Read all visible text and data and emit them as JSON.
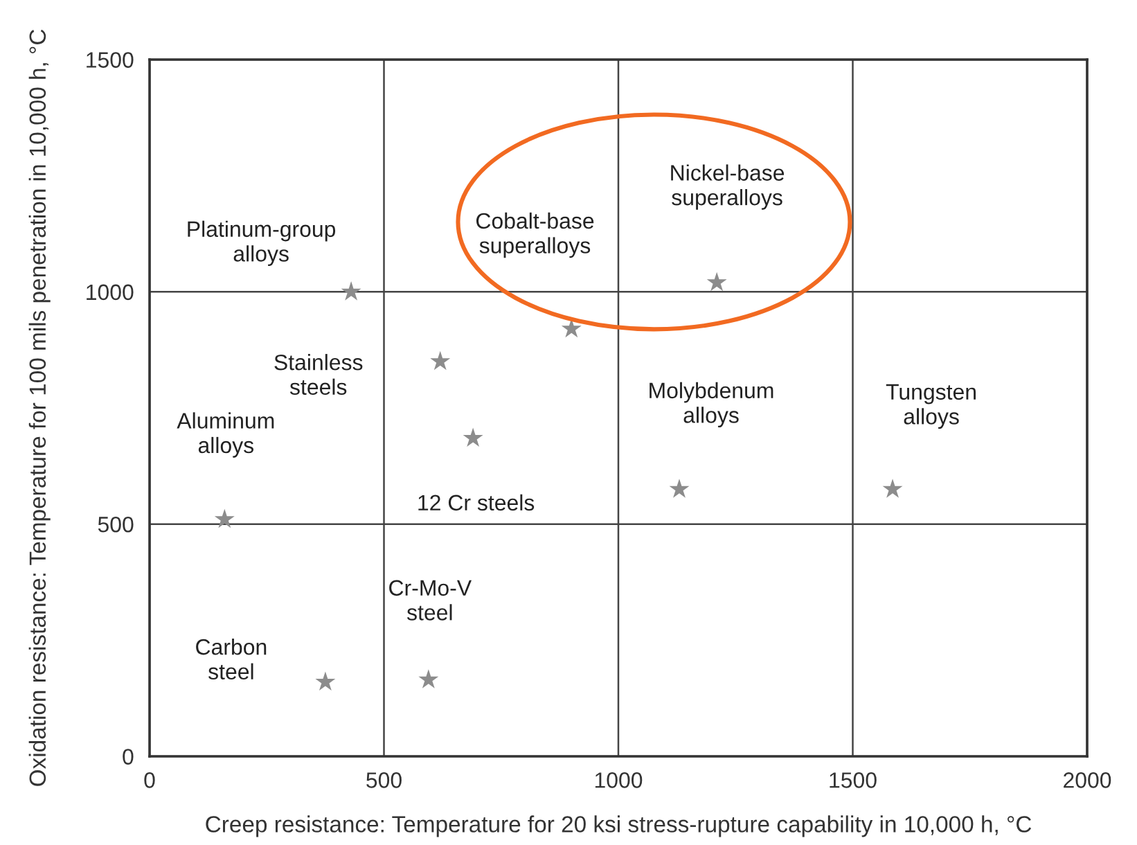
{
  "chart_data": {
    "type": "scatter",
    "xlabel": "Creep resistance: Temperature for 20 ksi stress-rupture capability in 10,000 h, °C",
    "ylabel": "Oxidation resistance: Temperature for 100 mils penetration in 10,000 h, °C",
    "xlim": [
      0,
      2000
    ],
    "ylim": [
      0,
      1500
    ],
    "xticks": [
      0,
      500,
      1000,
      1500,
      2000
    ],
    "yticks": [
      0,
      500,
      1000,
      1500
    ],
    "grid": true,
    "marker": "star",
    "series": [
      {
        "color": "#8c8c8c",
        "x": [
          430,
          900,
          1210,
          620,
          160,
          1130,
          1585,
          690,
          595,
          375
        ],
        "values": [
          1000,
          920,
          1020,
          850,
          510,
          575,
          575,
          685,
          165,
          160
        ]
      }
    ],
    "annotations": [
      {
        "text": "Platinum-group\nalloys",
        "x": 430,
        "y": 1000
      },
      "Cobalt-base\nsuperalloys",
      "Nickel-base\nsuperalloys",
      "Stainless\nsteels",
      {
        "text": "Aluminum\nalloys",
        "x": 160,
        "y": 510
      },
      {
        "text": "Molybdenum\nalloys",
        "x": 1130,
        "y": 575
      },
      {
        "text": "Tungsten\nalloys",
        "x": 1585,
        "y": 575
      },
      {
        "text": "12 Cr steels",
        "x": 690,
        "y": 685
      },
      {
        "text": "Cr-Mo-V\nsteel",
        "x": 595,
        "y": 165
      },
      {
        "text": "Carbon\nsteel",
        "x": 375,
        "y": 160
      }
    ]
  }
}
